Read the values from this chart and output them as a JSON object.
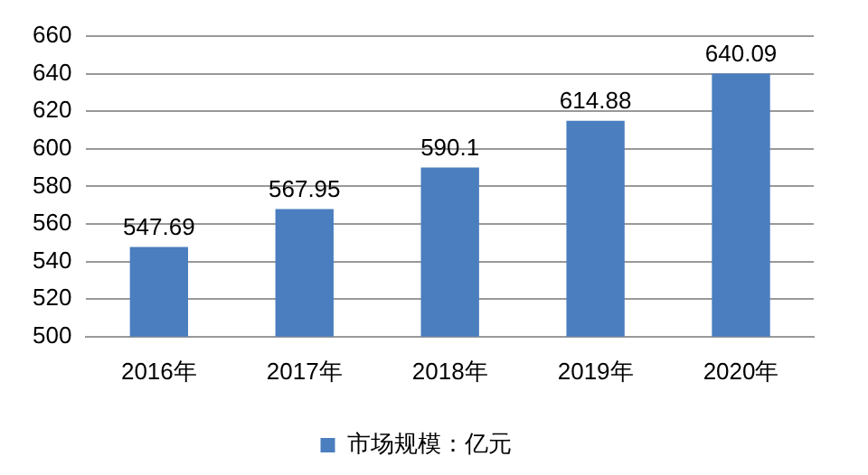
{
  "chart_data": {
    "type": "bar",
    "categories": [
      "2016年",
      "2017年",
      "2018年",
      "2019年",
      "2020年"
    ],
    "series": [
      {
        "name": "市场规模：亿元",
        "color": "#4a7ebf",
        "values": [
          547.69,
          567.95,
          590.1,
          614.88,
          640.09
        ]
      }
    ],
    "ylim": [
      500,
      660
    ],
    "yticks": [
      500,
      520,
      540,
      560,
      580,
      600,
      620,
      640,
      660
    ],
    "grid": "y",
    "legend": "bottom",
    "data_labels": true
  }
}
